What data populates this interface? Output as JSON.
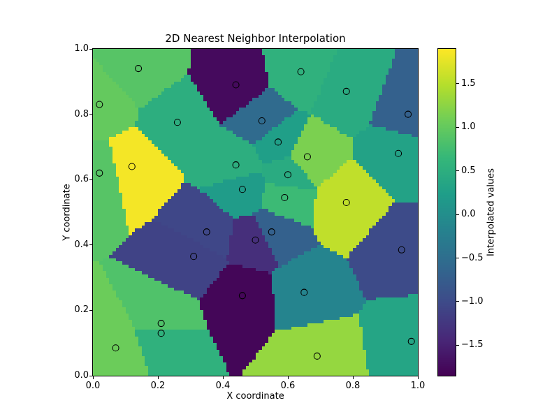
{
  "window": {
    "background": "#ffffff"
  },
  "chart_data": {
    "type": "heatmap",
    "title": "2D Nearest Neighbor Interpolation",
    "xlabel": "X coordinate",
    "ylabel": "Y coordinate",
    "xlim": [
      0.0,
      1.0
    ],
    "ylim": [
      0.0,
      1.0
    ],
    "x_tick_labels": [
      "0.0",
      "0.2",
      "0.4",
      "0.6",
      "0.8",
      "1.0"
    ],
    "y_tick_labels": [
      "0.0",
      "0.2",
      "0.4",
      "0.6",
      "0.8",
      "1.0"
    ],
    "interpolation": "nearest",
    "grid_resolution": 100,
    "colormap": "viridis",
    "marker_style": "open-circle",
    "colorbar": {
      "label": "Interpolated values",
      "vmin": -1.85,
      "vmax": 1.9,
      "ticks": [
        -1.5,
        -1.0,
        -0.5,
        0.0,
        0.5,
        1.0,
        1.5
      ],
      "tick_labels": [
        "−1.5",
        "−1.0",
        "−0.5",
        "0.0",
        "0.5",
        "1.0",
        "1.5"
      ]
    },
    "points": [
      {
        "x": 0.02,
        "y": 0.83,
        "value": 1.0
      },
      {
        "x": 0.14,
        "y": 0.94,
        "value": 0.9
      },
      {
        "x": 0.44,
        "y": 0.89,
        "value": -1.75
      },
      {
        "x": 0.64,
        "y": 0.93,
        "value": 0.55
      },
      {
        "x": 0.78,
        "y": 0.87,
        "value": 0.45
      },
      {
        "x": 0.97,
        "y": 0.8,
        "value": -0.7
      },
      {
        "x": 0.26,
        "y": 0.775,
        "value": 0.5
      },
      {
        "x": 0.52,
        "y": 0.78,
        "value": -0.55
      },
      {
        "x": 0.57,
        "y": 0.715,
        "value": 0.25
      },
      {
        "x": 0.12,
        "y": 0.64,
        "value": 1.85
      },
      {
        "x": 0.02,
        "y": 0.62,
        "value": 0.9
      },
      {
        "x": 0.44,
        "y": 0.645,
        "value": 0.5
      },
      {
        "x": 0.66,
        "y": 0.67,
        "value": 1.15
      },
      {
        "x": 0.94,
        "y": 0.68,
        "value": 0.3
      },
      {
        "x": 0.46,
        "y": 0.57,
        "value": 0.2
      },
      {
        "x": 0.6,
        "y": 0.615,
        "value": 0.45
      },
      {
        "x": 0.59,
        "y": 0.545,
        "value": 0.7
      },
      {
        "x": 0.78,
        "y": 0.53,
        "value": 1.55
      },
      {
        "x": 0.35,
        "y": 0.44,
        "value": -1.05
      },
      {
        "x": 0.5,
        "y": 0.415,
        "value": -1.35
      },
      {
        "x": 0.55,
        "y": 0.44,
        "value": -0.7
      },
      {
        "x": 0.95,
        "y": 0.385,
        "value": -1.0
      },
      {
        "x": 0.31,
        "y": 0.365,
        "value": -1.1
      },
      {
        "x": 0.46,
        "y": 0.245,
        "value": -1.8
      },
      {
        "x": 0.65,
        "y": 0.255,
        "value": -0.15
      },
      {
        "x": 0.21,
        "y": 0.16,
        "value": 0.85
      },
      {
        "x": 0.21,
        "y": 0.13,
        "value": 0.55
      },
      {
        "x": 0.07,
        "y": 0.085,
        "value": 1.05
      },
      {
        "x": 0.69,
        "y": 0.06,
        "value": 1.3
      },
      {
        "x": 0.98,
        "y": 0.105,
        "value": 0.35
      }
    ]
  }
}
